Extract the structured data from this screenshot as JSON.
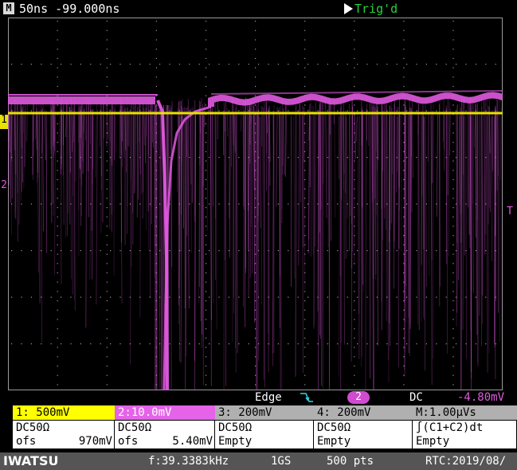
{
  "header": {
    "mode_badge": "M",
    "timebase": "50ns -99.000ns",
    "trigger_state": "Trig'd"
  },
  "screen": {
    "ch1_level_marker": "1",
    "ch2_level_marker": "2",
    "trigger_level_marker": "T"
  },
  "trigger": {
    "type": "Edge",
    "source": "2",
    "coupling": "DC",
    "level": "-4.80mV"
  },
  "channels": {
    "ch1": {
      "label": "1: 500mV",
      "coupling": "DC50Ω",
      "offset_label": "ofs",
      "offset_value": "970mV"
    },
    "ch2": {
      "label": "2:10.0mV",
      "coupling": "DC50Ω",
      "offset_label": "ofs",
      "offset_value": "5.40mV"
    },
    "ch3": {
      "label": "3: 200mV",
      "coupling": "DC50Ω",
      "status": "Empty"
    },
    "ch4": {
      "label": "4: 200mV",
      "coupling": "DC50Ω",
      "status": "Empty"
    },
    "math": {
      "label": "M:1.00µVs",
      "function": "∫(C1+C2)dt",
      "status": "Empty"
    }
  },
  "footer": {
    "brand": "IWATSU",
    "frequency": "f:39.3383kHz",
    "sample_rate": "1GS",
    "points": "500 pts",
    "rtc": "RTC:2019/08/"
  },
  "colors": {
    "ch1": "#e8e200",
    "ch2": "#e05ae0",
    "grid": "#9a9a9a",
    "trig_state": "#27d23a"
  }
}
